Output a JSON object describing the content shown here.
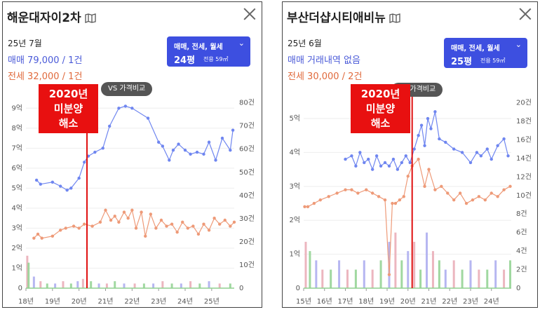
{
  "panels": [
    {
      "title": "해운대자이2차",
      "date": "25년 7월",
      "sale_text": "매매 79,000 / 1건",
      "jeonse_text": "전세 32,000 / 1건",
      "selector": {
        "types": "매매, 전세, 월세",
        "pyeong": "24평",
        "area": "전용 59㎡"
      },
      "vs_label": "VS 가격비교",
      "annotation": [
        "2020년",
        "미분양",
        "해소"
      ],
      "chart_data": {
        "type": "line",
        "x_ticks": [
          "18년",
          "19년",
          "20년",
          "21년",
          "22년",
          "23년",
          "24년",
          "25년"
        ],
        "y_left_ticks": [
          "0",
          "1억",
          "2억",
          "3억",
          "4억",
          "5억",
          "6억",
          "7억",
          "8억",
          "9억"
        ],
        "y_right_ticks": [
          "0",
          "10건",
          "20건",
          "30건",
          "40건",
          "50건",
          "60건",
          "70건",
          "80건"
        ],
        "ylim_left": [
          0,
          9.5
        ],
        "ylim_right": [
          0,
          82
        ],
        "xlim": [
          2018,
          2025.85
        ],
        "vline_x": 2020.3,
        "series": [
          {
            "name": "매매",
            "color": "#6f86f0",
            "x": [
              2018.4,
              2018.55,
              2019.0,
              2019.3,
              2019.55,
              2019.7,
              2020.0,
              2020.2,
              2020.35,
              2020.6,
              2020.9,
              2021.15,
              2021.5,
              2021.75,
              2022.0,
              2022.6,
              2023.0,
              2023.15,
              2023.4,
              2023.55,
              2023.75,
              2024.0,
              2024.2,
              2024.45,
              2024.7,
              2024.9,
              2025.15,
              2025.4,
              2025.7,
              2025.8
            ],
            "y": [
              5.4,
              5.2,
              5.3,
              5.1,
              4.9,
              5.0,
              5.5,
              6.3,
              6.6,
              6.8,
              7.0,
              8.1,
              9.0,
              9.1,
              9.0,
              8.5,
              7.3,
              7.1,
              6.4,
              6.9,
              7.2,
              6.9,
              6.7,
              6.8,
              6.7,
              7.3,
              6.4,
              7.5,
              6.9,
              7.9
            ]
          },
          {
            "name": "전세",
            "color": "#ee9a78",
            "x": [
              2018.3,
              2018.45,
              2018.6,
              2019.0,
              2019.3,
              2019.5,
              2019.8,
              2020.0,
              2020.2,
              2020.5,
              2020.8,
              2021.0,
              2021.2,
              2021.35,
              2021.5,
              2021.7,
              2021.85,
              2022.0,
              2022.15,
              2022.35,
              2022.5,
              2022.7,
              2022.9,
              2023.1,
              2023.3,
              2023.5,
              2023.7,
              2023.9,
              2024.1,
              2024.3,
              2024.5,
              2024.7,
              2024.9,
              2025.1,
              2025.3,
              2025.5,
              2025.7,
              2025.85
            ],
            "y": [
              2.5,
              2.7,
              2.5,
              2.6,
              2.9,
              3.0,
              3.1,
              3.0,
              3.2,
              3.1,
              3.3,
              3.9,
              3.4,
              3.6,
              3.3,
              3.8,
              3.5,
              3.9,
              3.0,
              3.8,
              2.6,
              3.7,
              3.0,
              3.4,
              3.1,
              3.2,
              2.8,
              3.3,
              3.0,
              3.1,
              2.7,
              3.2,
              2.9,
              3.5,
              3.2,
              3.4,
              3.1,
              3.3
            ]
          }
        ],
        "volume": {
          "x": [
            2018.05,
            2018.1,
            2018.3,
            2018.55,
            2018.8,
            2019.1,
            2019.4,
            2019.7,
            2019.95,
            2020.15,
            2020.45,
            2020.75,
            2021.05,
            2021.35,
            2021.7,
            2022.1,
            2022.45,
            2022.8,
            2023.15,
            2023.5,
            2023.85,
            2024.2,
            2024.55,
            2024.9,
            2025.3,
            2025.7
          ],
          "y": [
            14,
            11,
            5,
            3,
            2,
            2,
            3,
            2,
            3,
            4,
            3,
            2,
            2,
            3,
            2,
            2,
            2,
            2,
            3,
            2,
            2,
            3,
            2,
            3,
            2,
            2
          ]
        }
      }
    },
    {
      "title": "부산더샵시티애비뉴",
      "date": "25년 6월",
      "sale_text": "매매 거래내역 없음",
      "jeonse_text": "전세 30,000 / 2건",
      "selector": {
        "types": "매매, 전세, 월세",
        "pyeong": "25평",
        "area": "전용 59㎡"
      },
      "vs_label": "VS 가격비교",
      "annotation": [
        "2020년",
        "미분양",
        "해소"
      ],
      "chart_data": {
        "type": "line",
        "x_ticks": [
          "15년",
          "16년",
          "17년",
          "18년",
          "19년",
          "20년",
          "21년",
          "22년",
          "23년",
          "24년"
        ],
        "y_left_ticks": [
          "0",
          "1억",
          "2억",
          "3억",
          "4억",
          "5억"
        ],
        "y_right_ticks": [
          "0",
          "2건",
          "4건",
          "6건",
          "8건",
          "10건",
          "12건",
          "14건",
          "16건",
          "18건",
          "20건"
        ],
        "ylim_left": [
          0,
          5.6
        ],
        "ylim_right": [
          0,
          20.5
        ],
        "xlim": [
          2015,
          2024.95
        ],
        "vline_x": 2020.2,
        "series": [
          {
            "name": "매매",
            "color": "#6f86f0",
            "x": [
              2017.0,
              2017.3,
              2017.5,
              2017.7,
              2017.9,
              2018.1,
              2018.3,
              2018.5,
              2018.7,
              2018.9,
              2019.1,
              2019.3,
              2019.5,
              2019.7,
              2019.9,
              2020.1,
              2020.3,
              2020.5,
              2020.65,
              2020.8,
              2020.95,
              2021.1,
              2021.3,
              2021.5,
              2021.8,
              2022.2,
              2022.6,
              2023.0,
              2023.3,
              2023.5,
              2023.8,
              2024.0,
              2024.3,
              2024.6,
              2024.8
            ],
            "y": [
              3.8,
              3.9,
              3.6,
              4.0,
              3.7,
              3.8,
              3.5,
              3.9,
              3.6,
              3.7,
              3.6,
              3.8,
              3.5,
              3.7,
              3.9,
              3.7,
              4.1,
              4.5,
              4.8,
              4.2,
              5.0,
              4.7,
              5.2,
              4.4,
              4.3,
              4.1,
              4.0,
              3.7,
              4.0,
              3.9,
              4.1,
              3.8,
              4.2,
              4.4,
              3.9
            ]
          },
          {
            "name": "전세",
            "color": "#ee9a78",
            "x": [
              2015.05,
              2015.2,
              2015.5,
              2015.8,
              2016.2,
              2016.6,
              2017.0,
              2017.3,
              2017.6,
              2018.0,
              2018.3,
              2018.6,
              2018.9,
              2019.1,
              2019.25,
              2019.4,
              2019.6,
              2019.8,
              2020.0,
              2020.2,
              2020.5,
              2020.8,
              2021.0,
              2021.3,
              2021.6,
              2021.9,
              2022.2,
              2022.5,
              2022.8,
              2023.1,
              2023.4,
              2023.7,
              2024.0,
              2024.3,
              2024.6,
              2024.9
            ],
            "y": [
              2.4,
              2.4,
              2.5,
              2.6,
              2.7,
              2.8,
              2.9,
              2.9,
              2.8,
              2.9,
              2.8,
              2.7,
              2.6,
              0.4,
              2.5,
              2.5,
              2.6,
              2.7,
              3.3,
              3.6,
              3.8,
              3.0,
              3.5,
              2.9,
              3.0,
              2.8,
              2.6,
              2.8,
              2.5,
              2.6,
              2.7,
              2.6,
              2.8,
              2.7,
              2.9,
              3.0
            ]
          }
        ],
        "volume": {
          "x": [
            2015.1,
            2015.3,
            2015.6,
            2015.9,
            2016.3,
            2016.7,
            2017.1,
            2017.5,
            2017.9,
            2018.3,
            2018.7,
            2019.1,
            2019.4,
            2019.7,
            2020.0,
            2020.3,
            2020.6,
            2020.9,
            2021.2,
            2021.5,
            2021.8,
            2022.2,
            2022.6,
            2023.0,
            2023.4,
            2023.8,
            2024.2,
            2024.6,
            2024.9
          ],
          "y": [
            5,
            4,
            3,
            2,
            2,
            3,
            2,
            2,
            3,
            2,
            3,
            5,
            6,
            3,
            4,
            5,
            2,
            6,
            4,
            3,
            2,
            3,
            2,
            3,
            2,
            2,
            3,
            2,
            3
          ]
        }
      }
    }
  ]
}
